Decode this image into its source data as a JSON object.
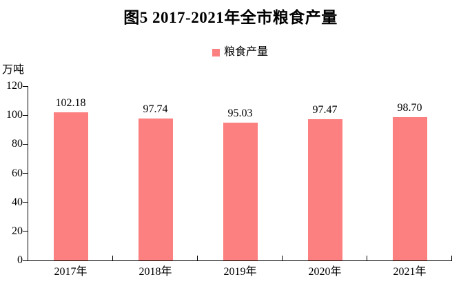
{
  "title": "图5  2017-2021年全市粮食产量",
  "legend": {
    "label": "粮食产量",
    "marker_color": "#FC8080"
  },
  "y_axis": {
    "unit_label": "万吨",
    "ticks": [
      0,
      20,
      40,
      60,
      80,
      100,
      120
    ],
    "max": 120
  },
  "colors": {
    "bar": "#FC8080",
    "axis": "#000000",
    "text": "#000000"
  },
  "chart_data": {
    "type": "bar",
    "title": "图5  2017-2021年全市粮食产量",
    "categories": [
      "2017年",
      "2018年",
      "2019年",
      "2020年",
      "2021年"
    ],
    "series": [
      {
        "name": "粮食产量",
        "values": [
          102.18,
          97.74,
          95.03,
          97.47,
          98.7
        ]
      }
    ],
    "data_labels": [
      "102.18",
      "97.74",
      "95.03",
      "97.47",
      "98.70"
    ],
    "xlabel": "",
    "ylabel": "万吨",
    "ylim": [
      0,
      120
    ],
    "grid": false,
    "legend_position": "top-center",
    "bar_color": "#FC8080"
  }
}
